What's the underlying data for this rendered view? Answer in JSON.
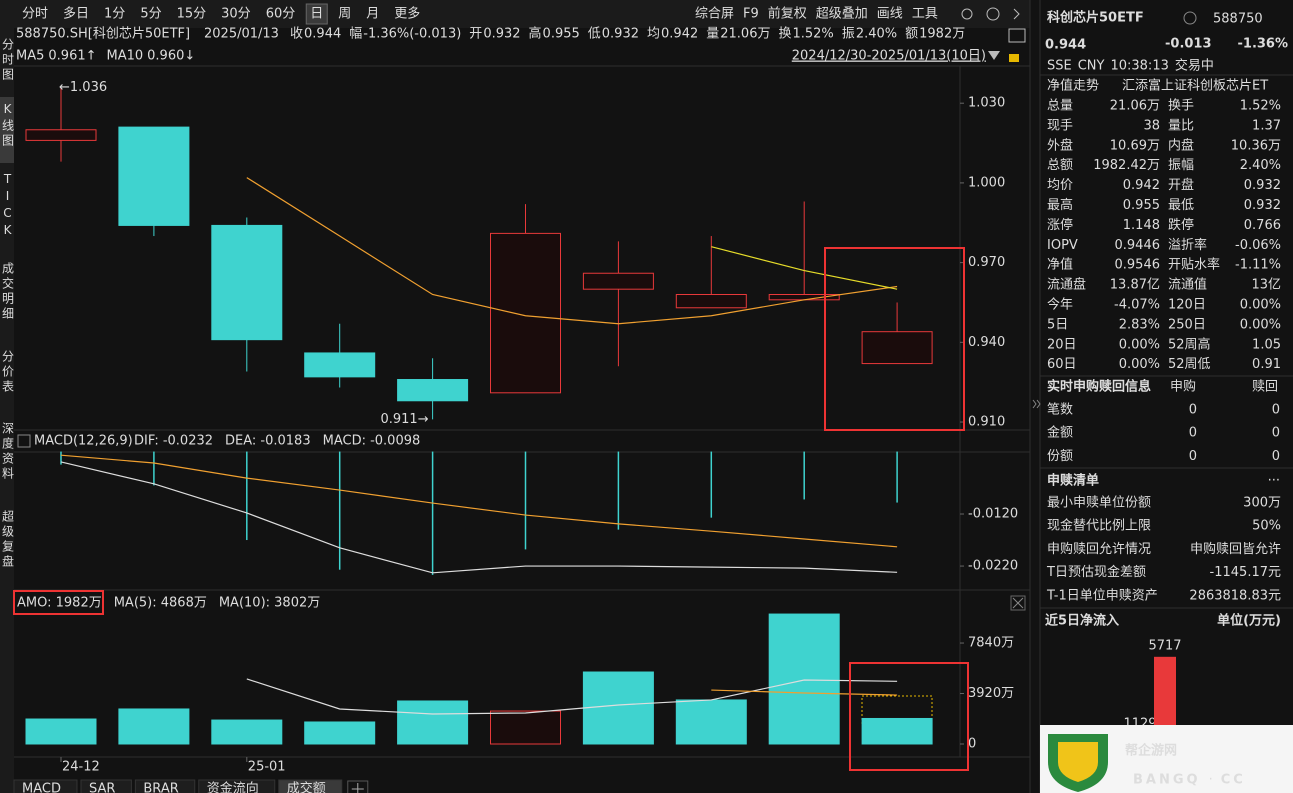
{
  "toolbar": {
    "periods": [
      "分时",
      "多日",
      "1分",
      "5分",
      "15分",
      "30分",
      "60分",
      "日",
      "周",
      "月",
      "更多"
    ],
    "active_period": 7,
    "tools": [
      "综合屏",
      "F9",
      "前复权",
      "超级叠加",
      "画线",
      "工具"
    ]
  },
  "side_tabs": [
    "分时图",
    "K线图",
    "TICK",
    "成交明细",
    "分价表",
    "深度资料",
    "超级复盘"
  ],
  "active_side_tab": 1,
  "info": {
    "code": "588750.SH[科创芯片50ETF]",
    "date": "2025/01/13",
    "fields": [
      {
        "label": "收",
        "value": "0.944",
        "color": "#35c23a"
      },
      {
        "label": "幅",
        "value": "-1.36%(-0.013)",
        "color": "#35c23a"
      },
      {
        "label": "开",
        "value": "0.932",
        "color": "#35c23a"
      },
      {
        "label": "高",
        "value": "0.955",
        "color": "#35c23a"
      },
      {
        "label": "低",
        "value": "0.932",
        "color": "#35c23a"
      },
      {
        "label": "均",
        "value": "0.942",
        "color": "#35c23a"
      },
      {
        "label": "量",
        "value": "21.06万",
        "color": "#dddddd"
      },
      {
        "label": "换",
        "value": "1.52%",
        "color": "#dddddd"
      },
      {
        "label": "振",
        "value": "2.40%",
        "color": "#dddddd"
      },
      {
        "label": "额",
        "value": "1982万",
        "color": "#dddddd"
      }
    ]
  },
  "kline": {
    "date_range": "2024/12/30-2025/01/13(10日)",
    "ylim": [
      0.907,
      1.044
    ],
    "yticks": [
      {
        "value": 0.91,
        "label": "0.910"
      },
      {
        "value": 0.94,
        "label": "0.940"
      },
      {
        "value": 0.97,
        "label": "0.970"
      },
      {
        "value": 1.0,
        "label": "1.000"
      },
      {
        "value": 1.03,
        "label": "1.030"
      }
    ],
    "x_labels": [
      "24-12",
      null,
      "25-01",
      null,
      null,
      null,
      null,
      null,
      null,
      null
    ],
    "open": [
      1.016,
      1.021,
      0.984,
      0.936,
      0.926,
      0.921,
      0.96,
      0.953,
      0.956,
      0.932
    ],
    "high": [
      1.036,
      1.021,
      0.987,
      0.947,
      0.934,
      0.992,
      0.978,
      0.98,
      0.993,
      0.955
    ],
    "low": [
      1.008,
      0.98,
      0.929,
      0.923,
      0.911,
      0.921,
      0.931,
      0.953,
      0.956,
      0.932
    ],
    "close": [
      1.02,
      0.984,
      0.941,
      0.927,
      0.918,
      0.981,
      0.966,
      0.958,
      0.958,
      0.944
    ],
    "up_color": "#e8393a",
    "down_color": "#3fd3cf",
    "ma": [
      {
        "name": "MA5",
        "label": "0.961↑",
        "color": "#f0a030",
        "values": [
          null,
          null,
          1.002,
          0.98,
          0.958,
          0.95,
          0.947,
          0.95,
          0.956,
          0.961
        ]
      },
      {
        "name": "MA10",
        "label": "0.960↓",
        "color": "#e6dc2a",
        "values": [
          null,
          null,
          null,
          null,
          null,
          null,
          null,
          0.976,
          0.967,
          0.96
        ]
      }
    ],
    "high_label": "←1.036",
    "low_label": "0.911→"
  },
  "macd": {
    "title": "MACD(12,26,9)",
    "fields": [
      {
        "text": "DIF: -0.0232",
        "color": "#dddddd"
      },
      {
        "text": "DEA: -0.0183",
        "color": "#f0a030"
      },
      {
        "text": "MACD: -0.0098",
        "color": "#3fd3cf"
      }
    ],
    "ylim": [
      -0.0266,
      0.0003
    ],
    "yticks": [
      {
        "value": -0.012,
        "label": "-0.0120"
      },
      {
        "value": -0.022,
        "label": "-0.0220"
      }
    ],
    "dif": [
      -0.002,
      -0.0062,
      -0.0118,
      -0.0185,
      -0.0233,
      -0.022,
      -0.022,
      -0.0222,
      -0.0224,
      -0.0232
    ],
    "dea": [
      -0.0007,
      -0.0022,
      -0.0051,
      -0.0074,
      -0.0099,
      -0.0122,
      -0.0139,
      -0.0153,
      -0.0168,
      -0.0183
    ],
    "hist": [
      -0.0025,
      -0.0065,
      -0.017,
      -0.0227,
      -0.0237,
      -0.0188,
      -0.015,
      -0.0127,
      -0.0092,
      -0.0098
    ],
    "dif_color": "#dddddd",
    "dea_color": "#f0a030",
    "hist_color": "#3fd3cf"
  },
  "volume": {
    "title": "AMO: 1982万",
    "ma": [
      {
        "label": "MA(5): 4868万",
        "color": "#dddddd",
        "values": [
          null,
          null,
          5050,
          2720,
          2330,
          2410,
          3030,
          3420,
          4970,
          4868
        ]
      },
      {
        "label": "MA(10): 3802万",
        "color": "#f0a030",
        "values": [
          null,
          null,
          null,
          null,
          null,
          null,
          null,
          4190,
          3960,
          3802
        ]
      }
    ],
    "values": [
      1940,
      2720,
      1860,
      1710,
      3340,
      2560,
      5590,
      3420,
      10090,
      1982
    ],
    "colors": [
      "#3fd3cf",
      "#3fd3cf",
      "#3fd3cf",
      "#3fd3cf",
      "#3fd3cf",
      "#e8393a",
      "#3fd3cf",
      "#3fd3cf",
      "#3fd3cf",
      "#3fd3cf"
    ],
    "ylim": [
      0,
      10250
    ],
    "yticks": [
      0,
      {
        "value": 3920,
        "label": "3920万"
      },
      {
        "value": 7840,
        "label": "7840万"
      }
    ]
  },
  "bottom_tabs": [
    "MACD",
    "SAR",
    "BRAR",
    "资金流向",
    "成交额"
  ],
  "active_bottom_tab": 4,
  "quote": {
    "name": "科创芯片50ETF",
    "code": "588750",
    "price": "0.944",
    "change": "-0.013",
    "change_pct": "-1.36%",
    "color": "#35c23a",
    "status": [
      "SSE",
      "CNY",
      "10:38:13",
      "交易中"
    ],
    "nav_trend": "净值走势",
    "fund": "汇添富上证科创板芯片ET",
    "stats": [
      [
        {
          "label": "总量",
          "value": "21.06万",
          "color": "#dddddd"
        },
        {
          "label": "换手",
          "value": "1.52%",
          "color": "#dddddd"
        }
      ],
      [
        {
          "label": "现手",
          "value": "38",
          "color": "#dddddd"
        },
        {
          "label": "量比",
          "value": "1.37",
          "color": "#dddddd"
        }
      ],
      [
        {
          "label": "外盘",
          "value": "10.69万",
          "color": "#e8393a"
        },
        {
          "label": "内盘",
          "value": "10.36万",
          "color": "#35c23a"
        }
      ],
      [
        {
          "label": "总额",
          "value": "1982.42万",
          "color": "#dddddd"
        },
        {
          "label": "振幅",
          "value": "2.40%",
          "color": "#dddddd"
        }
      ],
      [
        {
          "label": "均价",
          "value": "0.942",
          "color": "#35c23a"
        },
        {
          "label": "开盘",
          "value": "0.932",
          "color": "#35c23a"
        }
      ],
      [
        {
          "label": "最高",
          "value": "0.955",
          "color": "#35c23a"
        },
        {
          "label": "最低",
          "value": "0.932",
          "color": "#35c23a"
        }
      ],
      [
        {
          "label": "涨停",
          "value": "1.148",
          "color": "#e8393a"
        },
        {
          "label": "跌停",
          "value": "0.766",
          "color": "#35c23a"
        }
      ],
      [
        {
          "label": "IOPV",
          "value": "0.9446",
          "color": "#dddddd"
        },
        {
          "label": "溢折率",
          "value": "-0.06%",
          "color": "#35c23a"
        }
      ],
      [
        {
          "label": "净值",
          "value": "0.9546",
          "color": "#35c23a"
        },
        {
          "label": "开贴水率",
          "value": "-1.11%",
          "color": "#35c23a"
        }
      ],
      [
        {
          "label": "流通盘",
          "value": "13.87亿",
          "color": "#dddddd"
        },
        {
          "label": "流通值",
          "value": "13亿",
          "color": "#dddddd"
        }
      ],
      [
        {
          "label": "今年",
          "value": "-4.07%",
          "color": "#35c23a"
        },
        {
          "label": "120日",
          "value": "0.00%",
          "color": "#dddddd"
        }
      ],
      [
        {
          "label": "5日",
          "value": "2.83%",
          "color": "#e8393a"
        },
        {
          "label": "250日",
          "value": "0.00%",
          "color": "#dddddd"
        }
      ],
      [
        {
          "label": "20日",
          "value": "0.00%",
          "color": "#dddddd"
        },
        {
          "label": "52周高",
          "value": "1.05",
          "color": "#dddddd"
        }
      ],
      [
        {
          "label": "60日",
          "value": "0.00%",
          "color": "#dddddd"
        },
        {
          "label": "52周低",
          "value": "0.91",
          "color": "#dddddd"
        }
      ]
    ]
  },
  "subscription": {
    "title": "实时申购赎回信息",
    "columns": [
      "申购",
      "赎回"
    ],
    "rows": [
      {
        "label": "笔数",
        "values": [
          0,
          0
        ]
      },
      {
        "label": "金额",
        "values": [
          0,
          0
        ]
      },
      {
        "label": "份额",
        "values": [
          0,
          0
        ]
      }
    ]
  },
  "redemption_list": {
    "title": "申赎清单",
    "more": "···",
    "rows": [
      {
        "label": "最小申赎单位份额",
        "value": "300万"
      },
      {
        "label": "现金替代比例上限",
        "value": "50%"
      },
      {
        "label": "申购赎回允许情况",
        "value": "申购赎回皆允许"
      },
      {
        "label": "T日预估现金差额",
        "value": "-1145.17元"
      },
      {
        "label": "T-1日单位申赎资产",
        "value": "2863818.83元"
      }
    ]
  },
  "flow": {
    "title": "近5日净流入",
    "unit": "单位(万元)",
    "values": [
      1129,
      5717
    ],
    "color": "#e8393a"
  },
  "watermark": {
    "title": "帮企游网",
    "subtitle_left": "BANGQ",
    "subtitle_dot": "·",
    "subtitle_right": "CC"
  }
}
